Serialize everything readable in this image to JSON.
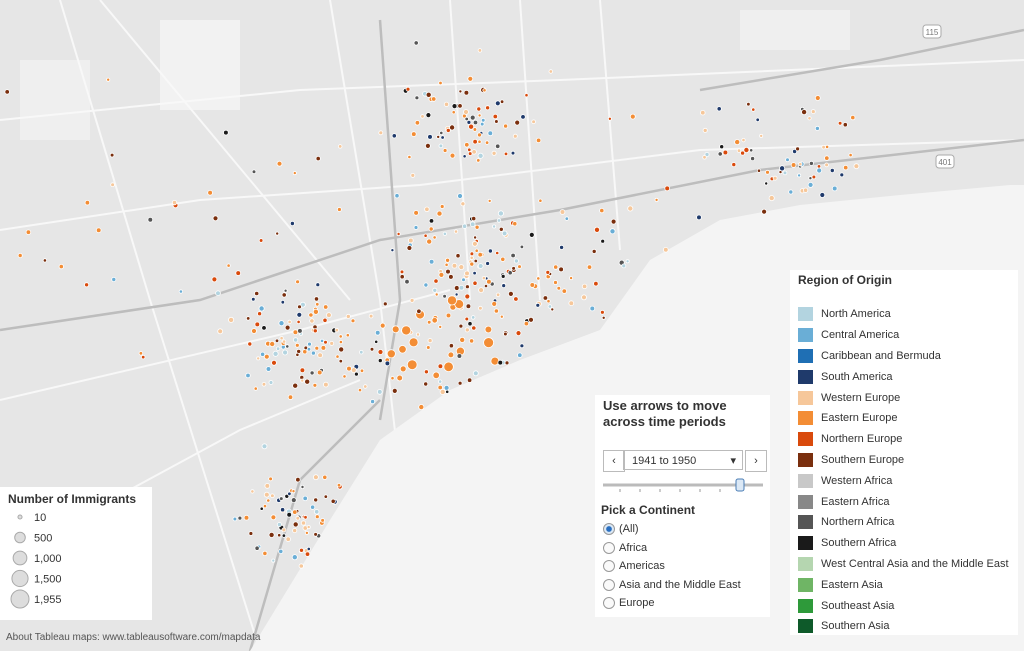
{
  "map": {
    "attribution": "About Tableau maps: www.tableausoftware.com/mapdata",
    "highway_labels": [
      "115",
      "401"
    ]
  },
  "size_legend": {
    "title": "Number of Immigrants",
    "items": [
      10,
      500,
      {
        "value": 1000,
        "label": "1,000"
      },
      {
        "value": 1500,
        "label": "1,500"
      },
      {
        "value": 1955,
        "label": "1,955"
      }
    ]
  },
  "color_legend": {
    "title": "Region of Origin",
    "items": [
      {
        "label": "North America",
        "color": "#b3d4e0"
      },
      {
        "label": "Central America",
        "color": "#6aaed6"
      },
      {
        "label": "Caribbean and Bermuda",
        "color": "#1f6fb4"
      },
      {
        "label": "South America",
        "color": "#1f3a6b"
      },
      {
        "label": "Western Europe",
        "color": "#f6c79a"
      },
      {
        "label": "Eastern Europe",
        "color": "#f38d35"
      },
      {
        "label": "Northern Europe",
        "color": "#d94a0c"
      },
      {
        "label": "Southern Europe",
        "color": "#7a2f0e"
      },
      {
        "label": "Western Africa",
        "color": "#c8c8c8"
      },
      {
        "label": "Eastern Africa",
        "color": "#888888"
      },
      {
        "label": "Northern Africa",
        "color": "#555555"
      },
      {
        "label": "Southern Africa",
        "color": "#1a1a1a"
      },
      {
        "label": "West Central Asia and the Middle East",
        "color": "#b5d6b0"
      },
      {
        "label": "Eastern Asia",
        "color": "#6fb565"
      },
      {
        "label": "Southeast Asia",
        "color": "#2e9a3a"
      },
      {
        "label": "Southern Asia",
        "color": "#0e5a2a"
      }
    ]
  },
  "time_control": {
    "title": "Use arrows to move across time periods",
    "selected": "1941 to 1950"
  },
  "continent_filter": {
    "title": "Pick a Continent",
    "options": [
      "(All)",
      "Africa",
      "Americas",
      "Asia and the Middle East",
      "Europe"
    ],
    "selected": 0
  }
}
